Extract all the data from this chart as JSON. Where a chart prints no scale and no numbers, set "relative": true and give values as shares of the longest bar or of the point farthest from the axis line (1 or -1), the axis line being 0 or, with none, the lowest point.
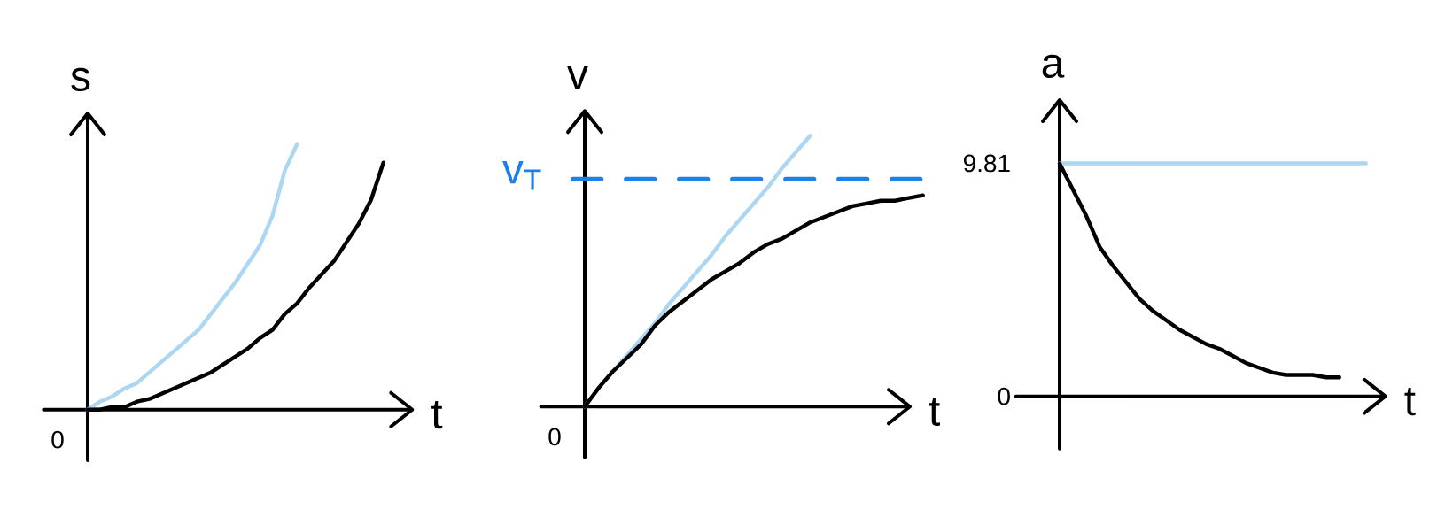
{
  "chart_data": [
    {
      "type": "line",
      "relative": true,
      "tick_labels": false,
      "xlabel": "t",
      "ylabel": "s",
      "annotations": [
        "0"
      ],
      "categories": [
        null,
        null,
        null,
        null,
        null,
        null,
        null,
        null,
        null,
        null,
        null,
        null,
        null,
        null,
        null,
        null,
        null,
        null,
        null,
        null,
        null,
        null,
        null,
        null,
        null
      ],
      "series": [
        {
          "color": "#acd6f2",
          "values": [
            0,
            0.03,
            0.05,
            0.08,
            0.1,
            0.14,
            0.18,
            0.22,
            0.26,
            0.3,
            0.36,
            0.42,
            0.48,
            0.55,
            0.62,
            0.73,
            0.9,
            1,
            null,
            null,
            null,
            null,
            null,
            null,
            null
          ]
        },
        {
          "color": "#000000",
          "values": [
            0,
            0,
            0.01,
            0.01,
            0.03,
            0.04,
            0.06,
            0.08,
            0.1,
            0.12,
            0.14,
            0.17,
            0.2,
            0.23,
            0.27,
            0.3,
            0.36,
            0.4,
            0.46,
            0.51,
            0.56,
            0.63,
            0.7,
            0.79,
            0.93
          ]
        }
      ]
    },
    {
      "type": "line",
      "relative": true,
      "tick_labels": false,
      "xlabel": "t",
      "ylabel": "v",
      "annotations": [
        "0"
      ],
      "categories": [
        null,
        null,
        null,
        null,
        null,
        null,
        null,
        null,
        null,
        null,
        null,
        null,
        null,
        null,
        null,
        null,
        null,
        null,
        null,
        null,
        null,
        null,
        null,
        null,
        null
      ],
      "series": [
        {
          "color": "#acd6f2",
          "values": [
            0,
            0.07,
            0.13,
            0.19,
            0.25,
            0.31,
            0.38,
            0.44,
            0.5,
            0.56,
            0.63,
            0.69,
            0.75,
            0.81,
            0.88,
            0.94,
            1,
            null,
            null,
            null,
            null,
            null,
            null,
            null,
            null
          ]
        },
        {
          "color": "#000000",
          "values": [
            0,
            0.07,
            0.13,
            0.18,
            0.23,
            0.3,
            0.35,
            0.39,
            0.43,
            0.47,
            0.5,
            0.53,
            0.57,
            0.6,
            0.62,
            0.65,
            0.68,
            0.7,
            0.72,
            0.74,
            0.75,
            0.76,
            0.76,
            0.77,
            0.78
          ]
        }
      ],
      "ref_lines": [
        {
          "axis": "y",
          "value": 0.84,
          "label": "v$_{T}$",
          "color": "#1f7fe8",
          "line_style": "dashed"
        }
      ]
    },
    {
      "type": "line",
      "tick_labels": "y",
      "xlabel": "t",
      "ylabel": "a",
      "ylim": [
        -2.2,
        12.4
      ],
      "yticks": [
        {
          "value": 0,
          "label": "0"
        },
        9.81
      ],
      "categories": [
        null,
        null,
        null,
        null,
        null,
        null,
        null,
        null,
        null,
        null,
        null,
        null,
        null,
        null,
        null,
        null,
        null,
        null,
        null,
        null,
        null,
        null
      ],
      "series": [
        {
          "color": "#000000",
          "values": [
            9.8,
            8.7,
            7.6,
            6.3,
            5.5,
            4.8,
            4.1,
            3.6,
            3.2,
            2.8,
            2.5,
            2.2,
            2.0,
            1.7,
            1.4,
            1.2,
            1.0,
            0.9,
            0.9,
            0.9,
            0.8,
            0.8
          ]
        }
      ],
      "ref_lines": [
        {
          "axis": "y",
          "value": 9.81,
          "color": "#acd6f2"
        }
      ]
    }
  ]
}
